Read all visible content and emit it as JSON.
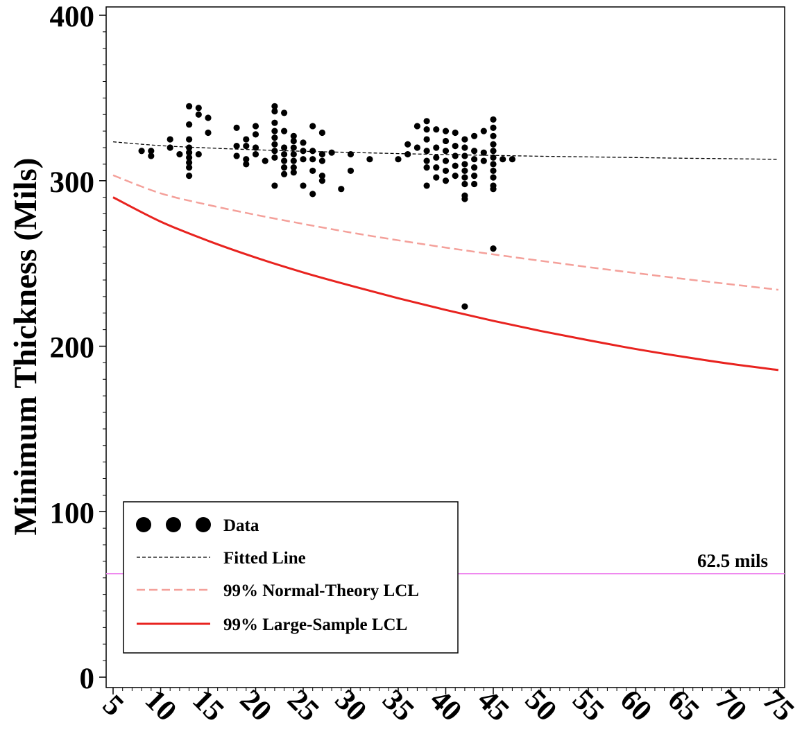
{
  "chart_data": {
    "type": "scatter",
    "title": "",
    "xlabel": "",
    "ylabel": "Minimum Thickness (Mils)",
    "xlim": [
      5,
      75
    ],
    "ylim": [
      0,
      400
    ],
    "x_ticks": [
      5,
      10,
      15,
      20,
      25,
      30,
      35,
      40,
      45,
      50,
      55,
      60,
      65,
      70,
      75
    ],
    "y_ticks": [
      0,
      100,
      200,
      300,
      400
    ],
    "grid": false,
    "legend_placement": "bottom-left",
    "legend": [
      {
        "label": "Data",
        "kind": "marker",
        "color": "#000000"
      },
      {
        "label": "Fitted Line",
        "kind": "line",
        "color": "#000000",
        "dash": "short"
      },
      {
        "label": "99% Normal-Theory LCL",
        "kind": "line",
        "color": "#f4a09a",
        "dash": "long"
      },
      {
        "label": "99% Large-Sample LCL",
        "kind": "line",
        "color": "#e8231f",
        "dash": "solid"
      }
    ],
    "reference_line": {
      "y": 62.5,
      "label": "62.5 mils",
      "color": "#ee82ee"
    },
    "series": [
      {
        "name": "Data",
        "kind": "scatter",
        "color": "#000000",
        "points": [
          [
            8,
            318
          ],
          [
            9,
            318
          ],
          [
            9,
            315
          ],
          [
            11,
            325
          ],
          [
            11,
            320
          ],
          [
            12,
            316
          ],
          [
            13,
            345
          ],
          [
            13,
            334
          ],
          [
            13,
            325
          ],
          [
            13,
            320
          ],
          [
            13,
            317
          ],
          [
            13,
            314
          ],
          [
            13,
            311
          ],
          [
            13,
            308
          ],
          [
            13,
            303
          ],
          [
            14,
            344
          ],
          [
            14,
            340
          ],
          [
            14,
            316
          ],
          [
            15,
            338
          ],
          [
            15,
            329
          ],
          [
            18,
            332
          ],
          [
            18,
            321
          ],
          [
            18,
            315
          ],
          [
            19,
            325
          ],
          [
            19,
            321
          ],
          [
            19,
            313
          ],
          [
            19,
            310
          ],
          [
            20,
            333
          ],
          [
            20,
            328
          ],
          [
            20,
            320
          ],
          [
            20,
            316
          ],
          [
            21,
            312
          ],
          [
            22,
            345
          ],
          [
            22,
            342
          ],
          [
            22,
            335
          ],
          [
            22,
            330
          ],
          [
            22,
            326
          ],
          [
            22,
            322
          ],
          [
            22,
            318
          ],
          [
            22,
            314
          ],
          [
            22,
            297
          ],
          [
            23,
            341
          ],
          [
            23,
            330
          ],
          [
            23,
            320
          ],
          [
            23,
            316
          ],
          [
            23,
            312
          ],
          [
            23,
            308
          ],
          [
            23,
            304
          ],
          [
            24,
            327
          ],
          [
            24,
            324
          ],
          [
            24,
            320
          ],
          [
            24,
            316
          ],
          [
            24,
            312
          ],
          [
            24,
            308
          ],
          [
            24,
            305
          ],
          [
            25,
            323
          ],
          [
            25,
            318
          ],
          [
            25,
            313
          ],
          [
            25,
            297
          ],
          [
            26,
            333
          ],
          [
            26,
            318
          ],
          [
            26,
            313
          ],
          [
            26,
            306
          ],
          [
            26,
            292
          ],
          [
            27,
            329
          ],
          [
            27,
            316
          ],
          [
            27,
            312
          ],
          [
            27,
            303
          ],
          [
            27,
            300
          ],
          [
            28,
            317
          ],
          [
            29,
            295
          ],
          [
            30,
            316
          ],
          [
            30,
            306
          ],
          [
            32,
            313
          ],
          [
            35,
            313
          ],
          [
            36,
            322
          ],
          [
            36,
            316
          ],
          [
            37,
            333
          ],
          [
            37,
            320
          ],
          [
            38,
            336
          ],
          [
            38,
            331
          ],
          [
            38,
            325
          ],
          [
            38,
            318
          ],
          [
            38,
            312
          ],
          [
            38,
            308
          ],
          [
            38,
            297
          ],
          [
            39,
            331
          ],
          [
            39,
            320
          ],
          [
            39,
            314
          ],
          [
            39,
            308
          ],
          [
            39,
            302
          ],
          [
            40,
            330
          ],
          [
            40,
            324
          ],
          [
            40,
            318
          ],
          [
            40,
            312
          ],
          [
            40,
            306
          ],
          [
            40,
            300
          ],
          [
            41,
            329
          ],
          [
            41,
            321
          ],
          [
            41,
            315
          ],
          [
            41,
            309
          ],
          [
            41,
            303
          ],
          [
            42,
            325
          ],
          [
            42,
            320
          ],
          [
            42,
            315
          ],
          [
            42,
            310
          ],
          [
            42,
            306
          ],
          [
            42,
            302
          ],
          [
            42,
            298
          ],
          [
            42,
            291
          ],
          [
            42,
            289
          ],
          [
            42,
            224
          ],
          [
            43,
            327
          ],
          [
            43,
            318
          ],
          [
            43,
            313
          ],
          [
            43,
            308
          ],
          [
            43,
            303
          ],
          [
            43,
            298
          ],
          [
            44,
            330
          ],
          [
            44,
            317
          ],
          [
            44,
            312
          ],
          [
            45,
            337
          ],
          [
            45,
            332
          ],
          [
            45,
            327
          ],
          [
            45,
            322
          ],
          [
            45,
            318
          ],
          [
            45,
            314
          ],
          [
            45,
            310
          ],
          [
            45,
            306
          ],
          [
            45,
            302
          ],
          [
            45,
            297
          ],
          [
            45,
            295
          ],
          [
            45,
            259
          ],
          [
            46,
            313
          ],
          [
            47,
            313
          ]
        ]
      },
      {
        "name": "Fitted Line",
        "kind": "line",
        "x": [
          5,
          10,
          15,
          20,
          25,
          30,
          35,
          40,
          45,
          50,
          55,
          60,
          65,
          70,
          75
        ],
        "values": [
          323.5,
          321.2,
          319.8,
          318.7,
          317.8,
          317.1,
          316.4,
          315.8,
          315.3,
          314.8,
          314.4,
          314.0,
          313.6,
          313.3,
          312.9
        ]
      },
      {
        "name": "99% Normal-Theory LCL",
        "kind": "line",
        "x": [
          5,
          10,
          15,
          20,
          25,
          30,
          35,
          40,
          45,
          50,
          55,
          60,
          65,
          70,
          75
        ],
        "values": [
          303.3,
          292.4,
          285.4,
          279.4,
          273.9,
          268.7,
          264.0,
          259.6,
          255.5,
          251.6,
          247.8,
          244.2,
          240.7,
          237.4,
          234.1
        ]
      },
      {
        "name": "99% Large-Sample LCL",
        "kind": "line",
        "x": [
          5,
          10,
          15,
          20,
          25,
          30,
          35,
          40,
          45,
          50,
          55,
          60,
          65,
          70,
          75
        ],
        "values": [
          290.0,
          275.3,
          263.7,
          253.6,
          244.6,
          236.6,
          229.0,
          221.9,
          215.3,
          209.2,
          203.6,
          198.3,
          193.6,
          189.3,
          185.6
        ]
      }
    ]
  }
}
